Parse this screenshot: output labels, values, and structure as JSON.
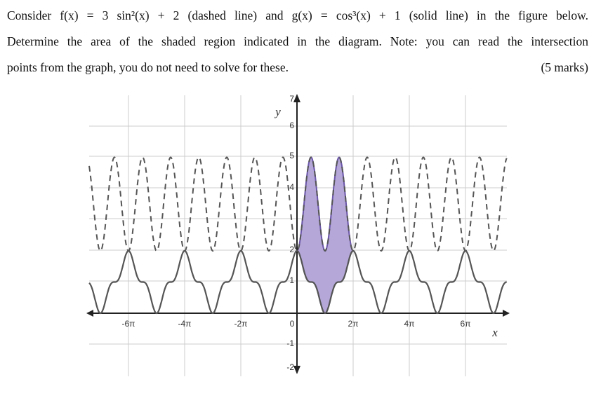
{
  "question": {
    "lines": [
      "Consider f(x) = 3 sin²(x) + 2 (dashed line) and g(x) = cos³(x) + 1 (solid line) in the figure below.",
      "Determine the area of the shaded region indicated in the diagram. Note: you can read the intersection",
      "points from the graph, you do not need to solve for these."
    ],
    "marks": "(5 marks)"
  },
  "figure": {
    "x_axis_label": "x",
    "y_axis_label": "y",
    "x_tick_labels": [
      "-6π",
      "-4π",
      "-2π",
      "0",
      "2π",
      "4π",
      "6π"
    ],
    "y_tick_labels": [
      "7",
      "6",
      "5",
      "4",
      "2",
      "1",
      "-1",
      "-2"
    ]
  }
}
